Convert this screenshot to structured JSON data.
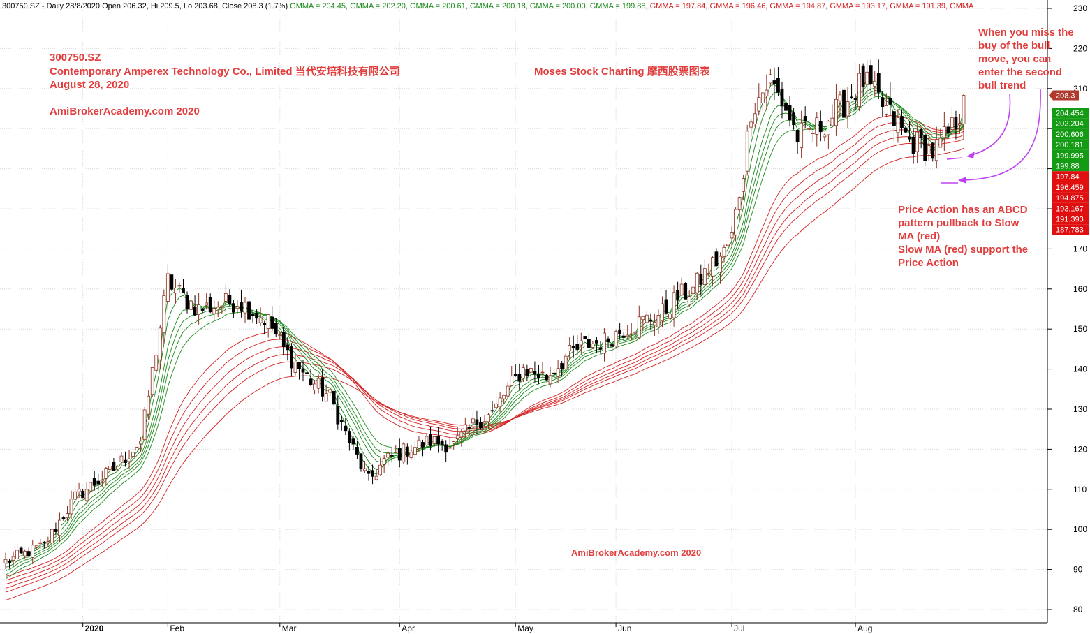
{
  "chart_data": {
    "type": "candlestick",
    "header": {
      "prefix": "300750.SZ - Daily 28/8/2020 Open 206.32, Hi 209.5, Lo 203.68, Close 208.3 (1.7%)",
      "items": [
        {
          "label": "GMMA = 204.45,",
          "color": "#1a8a1a"
        },
        {
          "label": "GMMA = 202.20,",
          "color": "#1a8a1a"
        },
        {
          "label": "GMMA = 200.61,",
          "color": "#1a8a1a"
        },
        {
          "label": "GMMA = 200.18,",
          "color": "#1a8a1a"
        },
        {
          "label": "GMMA = 200.00,",
          "color": "#1a8a1a"
        },
        {
          "label": "GMMA = 199.88,",
          "color": "#1a8a1a"
        },
        {
          "label": "GMMA = 197.84,",
          "color": "#d42020"
        },
        {
          "label": "GMMA = 196.46,",
          "color": "#d42020"
        },
        {
          "label": "GMMA = 194.87,",
          "color": "#d42020"
        },
        {
          "label": "GMMA = 193.17,",
          "color": "#d42020"
        },
        {
          "label": "GMMA = 191.39,",
          "color": "#d42020"
        },
        {
          "label": "GMMA",
          "color": "#d42020"
        }
      ]
    },
    "annotations": {
      "ticker": "300750.SZ",
      "company": "Contemporary Amperex Technology Co., Limited  当代安培科技有限公司",
      "date": "August 28, 2020",
      "site": "AmiBrokerAcademy.com  2020",
      "brand": "Moses Stock Charting 摩西股票图表",
      "watermark": "AmiBrokerAcademy.com 2020",
      "note_top": [
        "When you miss the",
        "buy of the bull",
        "move, you can",
        "enter the second",
        "bull trend"
      ],
      "note_bottom": [
        "Price Action has an ABCD",
        "pattern pullback to Slow",
        "MA (red)",
        "Slow MA (red) support the",
        "Price Action"
      ]
    },
    "ylim": [
      78,
      232
    ],
    "yticks": [
      80,
      90,
      100,
      110,
      120,
      130,
      140,
      150,
      160,
      170,
      180,
      190,
      200,
      210,
      220,
      230
    ],
    "ytick_labels": [
      "80",
      "90",
      "100",
      "110",
      "120",
      "130",
      "140",
      "150",
      "160",
      "170",
      "",
      "",
      "",
      "210",
      "220",
      "230"
    ],
    "xticks": [
      {
        "label": "2020",
        "bar": 20,
        "bold": true
      },
      {
        "label": "Feb",
        "bar": 42,
        "bold": false
      },
      {
        "label": "Mar",
        "bar": 71,
        "bold": false
      },
      {
        "label": "Apr",
        "bar": 102,
        "bold": false
      },
      {
        "label": "May",
        "bar": 132,
        "bold": false
      },
      {
        "label": "Jun",
        "bar": 158,
        "bold": false
      },
      {
        "label": "Jul",
        "bar": 188,
        "bold": false
      },
      {
        "label": "Aug",
        "bar": 220,
        "bold": false
      }
    ],
    "grid": true,
    "last_price": {
      "value": 208.3,
      "label": "208.3",
      "color": "#b03a2e"
    },
    "ma_values": [
      {
        "value": 204.454,
        "label": "204.454",
        "color": "#139b13"
      },
      {
        "value": 202.204,
        "label": "202.204",
        "color": "#139b13"
      },
      {
        "value": 200.606,
        "label": "200.606",
        "color": "#139b13"
      },
      {
        "value": 200.181,
        "label": "200.181",
        "color": "#139b13"
      },
      {
        "value": 199.995,
        "label": "199.995",
        "color": "#139b13"
      },
      {
        "value": 199.88,
        "label": "199.88",
        "color": "#139b13"
      },
      {
        "value": 197.84,
        "label": "197.84",
        "color": "#e01010"
      },
      {
        "value": 196.459,
        "label": "196.459",
        "color": "#e01010"
      },
      {
        "value": 194.875,
        "label": "194.875",
        "color": "#e01010"
      },
      {
        "value": 193.167,
        "label": "193.167",
        "color": "#e01010"
      },
      {
        "value": 191.393,
        "label": "191.393",
        "color": "#e01010"
      },
      {
        "value": 187.783,
        "label": "187.783",
        "color": "#e01010"
      }
    ],
    "series": [
      {
        "kind": "gmma",
        "group": "short",
        "color": "#1a8a1a",
        "values": [
          204.45,
          202.2,
          200.61,
          200.18,
          200.0,
          199.88
        ]
      },
      {
        "kind": "gmma",
        "group": "long",
        "color": "#d42020",
        "values": [
          197.84,
          196.46,
          194.87,
          193.17,
          191.39
        ]
      }
    ],
    "keypoints": [
      [
        0,
        92
      ],
      [
        10,
        96
      ],
      [
        18,
        108
      ],
      [
        28,
        115
      ],
      [
        35,
        122
      ],
      [
        42,
        162
      ],
      [
        46,
        158
      ],
      [
        50,
        155
      ],
      [
        60,
        157
      ],
      [
        68,
        152
      ],
      [
        72,
        145
      ],
      [
        78,
        138
      ],
      [
        84,
        133
      ],
      [
        88,
        124
      ],
      [
        94,
        112
      ],
      [
        98,
        117
      ],
      [
        104,
        120
      ],
      [
        110,
        122
      ],
      [
        116,
        121
      ],
      [
        122,
        127
      ],
      [
        126,
        129
      ],
      [
        130,
        135
      ],
      [
        134,
        140
      ],
      [
        140,
        138
      ],
      [
        145,
        143
      ],
      [
        150,
        146
      ],
      [
        155,
        147
      ],
      [
        160,
        150
      ],
      [
        165,
        152
      ],
      [
        170,
        154
      ],
      [
        174,
        158
      ],
      [
        178,
        160
      ],
      [
        182,
        165
      ],
      [
        186,
        169
      ],
      [
        188,
        173
      ],
      [
        191,
        190
      ],
      [
        193,
        205
      ],
      [
        198,
        212
      ],
      [
        202,
        205
      ],
      [
        205,
        198
      ],
      [
        210,
        200
      ],
      [
        216,
        205
      ],
      [
        222,
        212
      ],
      [
        226,
        207
      ],
      [
        230,
        202
      ],
      [
        234,
        197
      ],
      [
        237,
        196
      ],
      [
        240,
        194
      ],
      [
        242,
        196
      ],
      [
        245,
        200
      ],
      [
        248,
        206
      ]
    ],
    "ohlc_note": "Daily OHLC bars approximated from the figure"
  }
}
